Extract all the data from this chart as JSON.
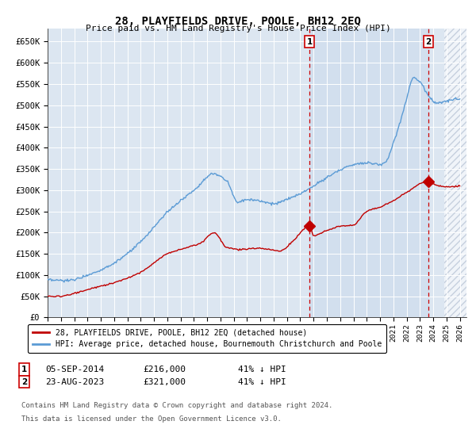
{
  "title": "28, PLAYFIELDS DRIVE, POOLE, BH12 2EQ",
  "subtitle": "Price paid vs. HM Land Registry's House Price Index (HPI)",
  "xlim_start": 1995.0,
  "xlim_end": 2026.5,
  "ylim": [
    0,
    680000
  ],
  "yticks": [
    0,
    50000,
    100000,
    150000,
    200000,
    250000,
    300000,
    350000,
    400000,
    450000,
    500000,
    550000,
    600000,
    650000
  ],
  "ytick_labels": [
    "£0",
    "£50K",
    "£100K",
    "£150K",
    "£200K",
    "£250K",
    "£300K",
    "£350K",
    "£400K",
    "£450K",
    "£500K",
    "£550K",
    "£600K",
    "£650K"
  ],
  "hpi_color": "#5b9bd5",
  "price_color": "#c00000",
  "marker1_date": 2014.7,
  "marker1_price": 216000,
  "marker1_label": "05-SEP-2014",
  "marker1_amount": "£216,000",
  "marker1_pct": "41% ↓ HPI",
  "marker2_date": 2023.65,
  "marker2_price": 321000,
  "marker2_label": "23-AUG-2023",
  "marker2_amount": "£321,000",
  "marker2_pct": "41% ↓ HPI",
  "legend_line1": "28, PLAYFIELDS DRIVE, POOLE, BH12 2EQ (detached house)",
  "legend_line2": "HPI: Average price, detached house, Bournemouth Christchurch and Poole",
  "footnote1": "Contains HM Land Registry data © Crown copyright and database right 2024.",
  "footnote2": "This data is licensed under the Open Government Licence v3.0.",
  "bg_color": "#dce6f1",
  "shade_start": 2014.7,
  "shade_end": 2023.65,
  "hatch_start": 2024.8,
  "xticks": [
    1995,
    1996,
    1997,
    1998,
    1999,
    2000,
    2001,
    2002,
    2003,
    2004,
    2005,
    2006,
    2007,
    2008,
    2009,
    2010,
    2011,
    2012,
    2013,
    2014,
    2015,
    2016,
    2017,
    2018,
    2019,
    2020,
    2021,
    2022,
    2023,
    2024,
    2025,
    2026
  ]
}
